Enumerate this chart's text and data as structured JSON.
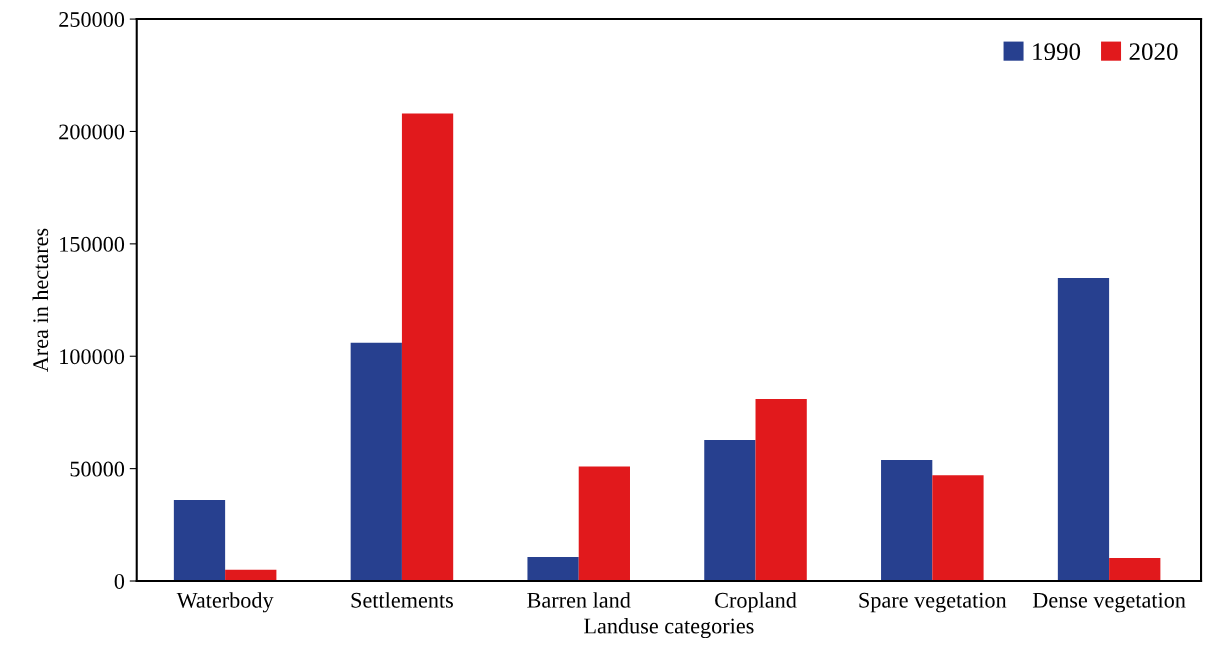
{
  "chart_data": {
    "type": "bar",
    "xlabel": "Landuse categories",
    "ylabel": "Area in hectares",
    "categories": [
      "Waterbody",
      "Settlements",
      "Barren land",
      "Cropland",
      "Spare vegetation",
      "Dense vegetation"
    ],
    "series": [
      {
        "name": "1990",
        "color": "#27408f",
        "values": [
          36000,
          106000,
          10700,
          62700,
          53800,
          134800
        ]
      },
      {
        "name": "2020",
        "color": "#e1191c",
        "values": [
          5000,
          208000,
          51000,
          81000,
          47000,
          10200
        ]
      }
    ],
    "ylim": [
      0,
      250000
    ],
    "yticks": [
      0,
      50000,
      100000,
      150000,
      200000,
      250000
    ],
    "grid": false,
    "legend": "top right"
  }
}
